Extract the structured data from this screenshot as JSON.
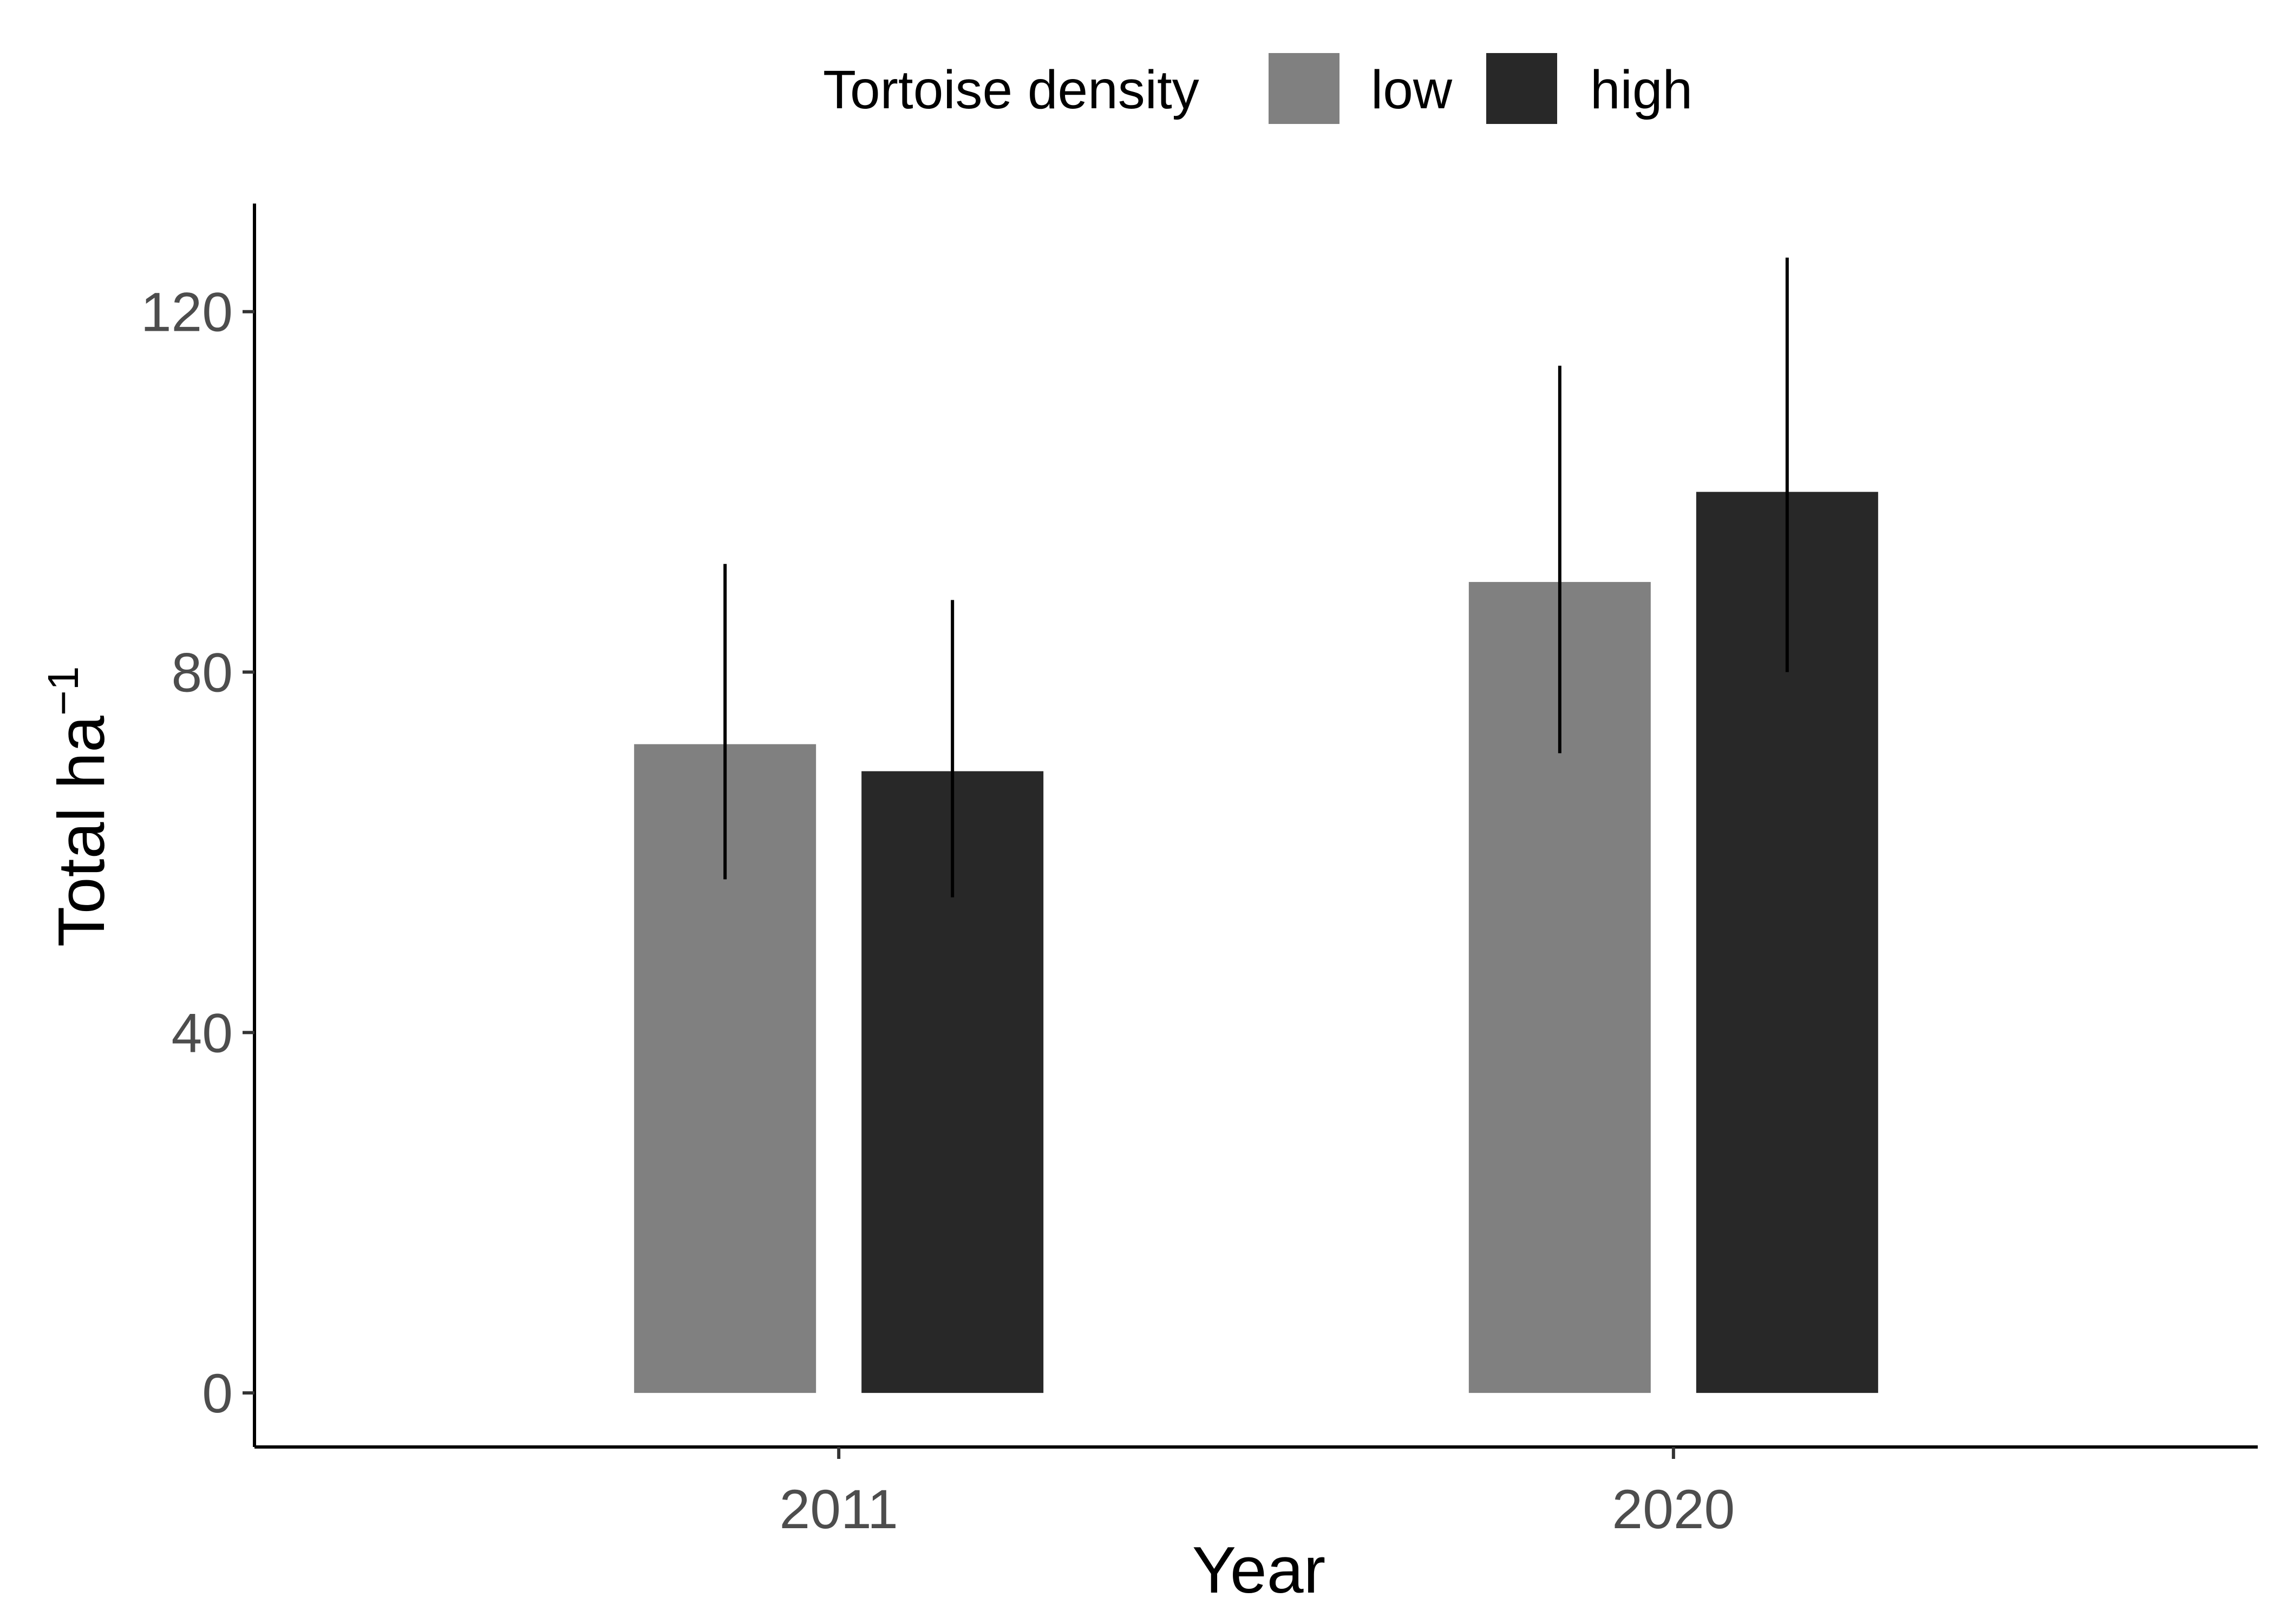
{
  "chart_data": {
    "type": "bar",
    "categories": [
      "2011",
      "2020"
    ],
    "series": [
      {
        "name": "low",
        "color": "#808080",
        "values": [
          72,
          90
        ],
        "error_low": [
          57,
          71
        ],
        "error_high": [
          92,
          114
        ]
      },
      {
        "name": "high",
        "color": "#282828",
        "values": [
          69,
          100
        ],
        "error_low": [
          55,
          80
        ],
        "error_high": [
          88,
          126
        ]
      }
    ],
    "legend_title": "Tortoise density",
    "legend_position": "top",
    "xlabel": "Year",
    "ylabel": "Total ha",
    "ylabel_superscript": "−1",
    "yticks": [
      0,
      40,
      80,
      120
    ],
    "ylim": [
      -6,
      132
    ],
    "grid": false
  }
}
